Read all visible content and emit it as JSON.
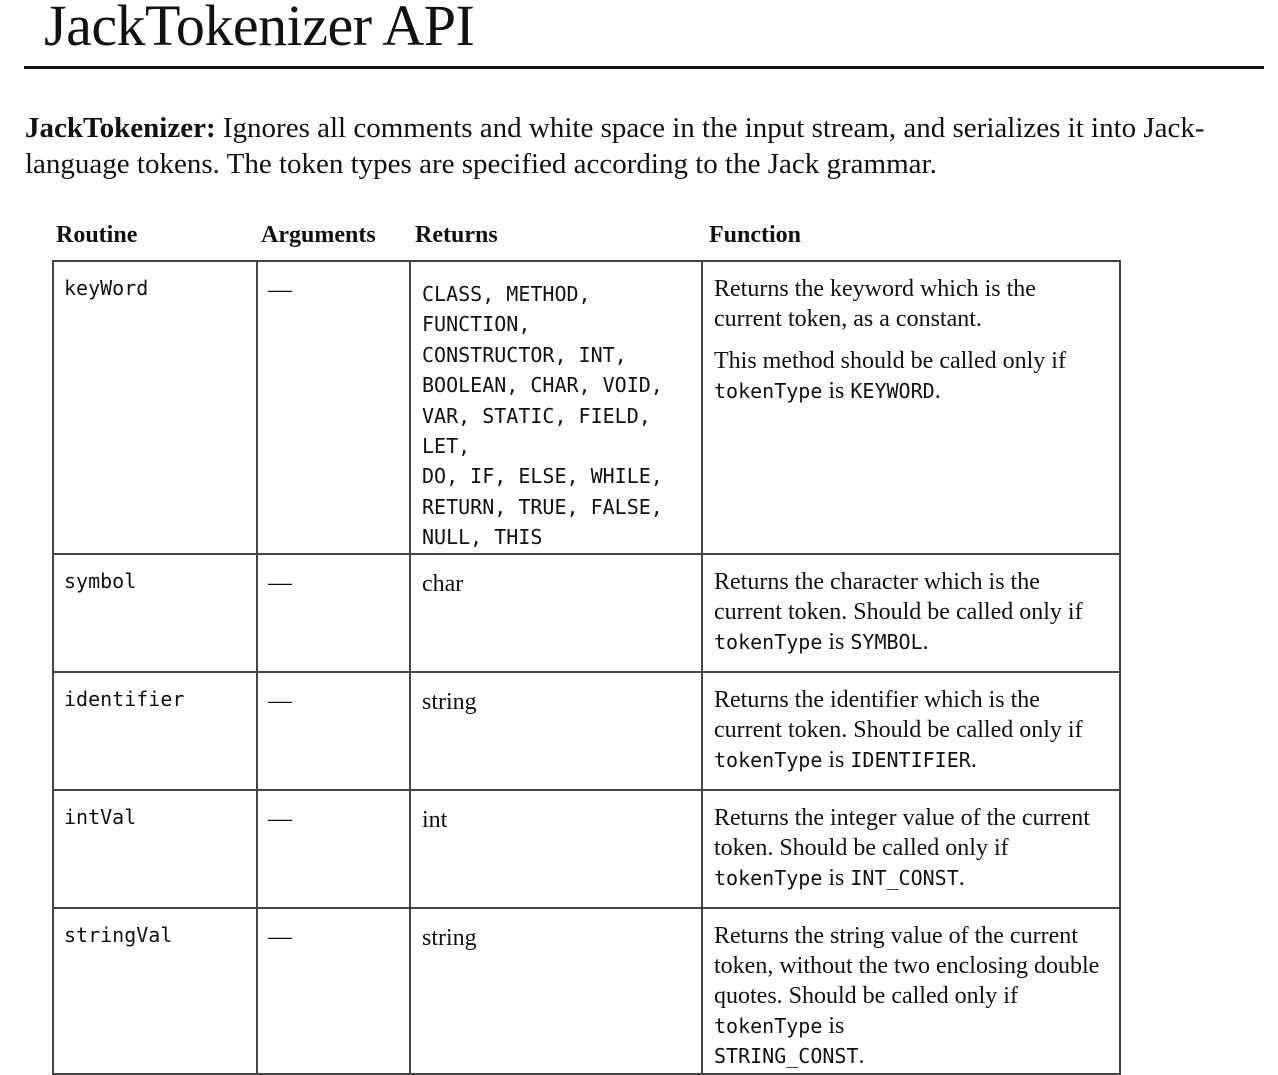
{
  "title": "JackTokenizer API",
  "intro": {
    "bold": "JackTokenizer:",
    "text": " Ignores all comments and white space in the input stream, and serializes it into Jack-language tokens. The token types are specified according to the Jack grammar."
  },
  "headers": {
    "routine": "Routine",
    "arguments": "Arguments",
    "returns": "Returns",
    "function": "Function"
  },
  "rows": [
    {
      "routine": "keyWord",
      "arguments": "—",
      "returns_lines": [
        "CLASS, METHOD,",
        "FUNCTION,",
        "CONSTRUCTOR, INT,",
        "BOOLEAN, CHAR, VOID,",
        "VAR, STATIC, FIELD, LET,",
        "DO, IF, ELSE, WHILE,",
        "RETURN, TRUE, FALSE,",
        "NULL, THIS"
      ],
      "function_p1": "Returns the keyword which is the current token, as a constant.",
      "function_p2_pre": "This method should be called only if ",
      "function_code1": "tokenType",
      "function_mid": " is ",
      "function_code2": "KEYWORD",
      "function_end": "."
    },
    {
      "routine": "symbol",
      "arguments": "—",
      "returns": "char",
      "function_pre": "Returns the character which is the current token. Should be called only if ",
      "function_code1": "tokenType",
      "function_mid": " is ",
      "function_code2": "SYMBOL",
      "function_end": "."
    },
    {
      "routine": "identifier",
      "arguments": "—",
      "returns": "string",
      "function_pre": "Returns the identifier which is the current token. Should be called only if ",
      "function_code1": "tokenType",
      "function_mid": " is ",
      "function_code2": "IDENTIFIER",
      "function_end": "."
    },
    {
      "routine": "intVal",
      "arguments": "—",
      "returns": "int",
      "function_pre": "Returns the integer value of the current token. Should be called only if ",
      "function_code1": "tokenType",
      "function_mid": " is ",
      "function_code2": "INT_CONST",
      "function_end": "."
    },
    {
      "routine": "stringVal",
      "arguments": "—",
      "returns": "string",
      "function_pre": "Returns the string value of the current token, without the two enclosing double quotes. Should be called only if ",
      "function_code1": "tokenType",
      "function_mid": " is ",
      "function_code2": "STRING_CONST",
      "function_end": "."
    }
  ]
}
